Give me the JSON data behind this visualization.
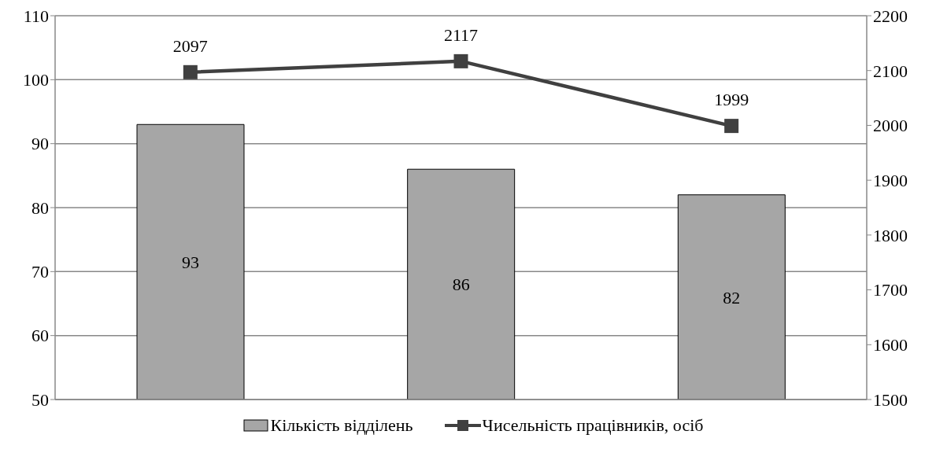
{
  "chart_data": {
    "type": "bar",
    "categories": [
      null,
      null,
      null
    ],
    "series": [
      {
        "name": "Кількість відділень",
        "color": "#a6a6a6",
        "values": [
          93,
          86,
          82
        ]
      },
      {
        "name": "Чисельність працівників, осіб",
        "type": "line",
        "axis": "y2",
        "color": "#404040",
        "values": [
          2097,
          2117,
          1999
        ],
        "marker": "square"
      }
    ],
    "ylim": [
      50,
      110
    ],
    "yticks": [
      50,
      60,
      70,
      80,
      90,
      100,
      110
    ],
    "y2lim": [
      1500,
      2200
    ],
    "y2ticks": [
      1500,
      1600,
      1700,
      1800,
      1900,
      2000,
      2100,
      2200
    ],
    "grid": "y",
    "legend": "bottom",
    "data_labels": true
  }
}
